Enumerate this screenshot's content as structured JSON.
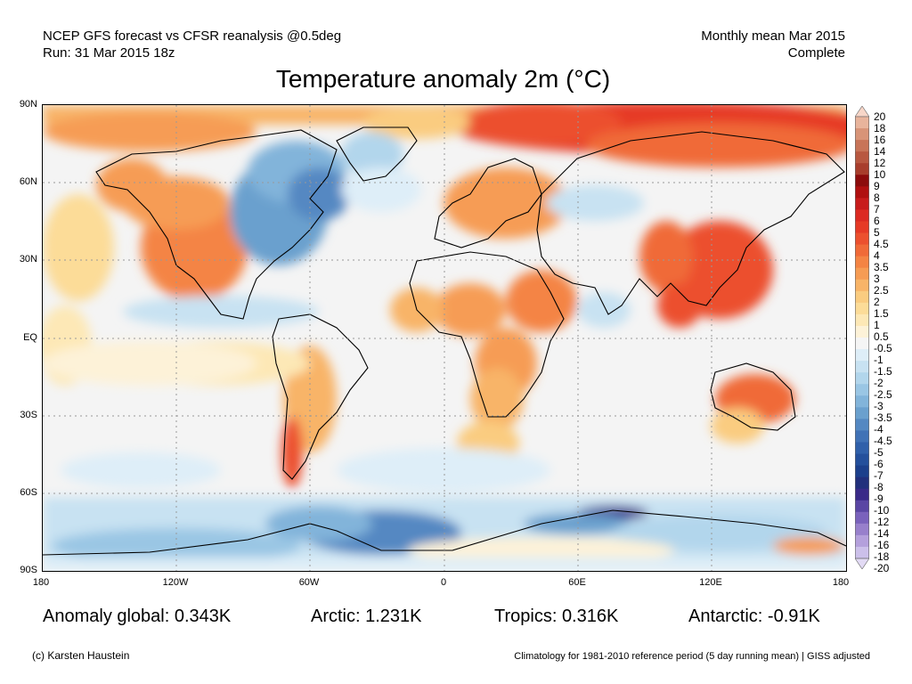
{
  "header": {
    "left_line1": "NCEP GFS forecast vs CFSR reanalysis @0.5deg",
    "left_line2": "Run: 31 Mar 2015 18z",
    "right_line1": "Monthly mean Mar 2015",
    "right_line2": "Complete"
  },
  "title": "Temperature anomaly 2m (°C)",
  "map": {
    "lat_labels": [
      "90N",
      "60N",
      "30N",
      "EQ",
      "30S",
      "60S",
      "90S"
    ],
    "lon_labels": [
      "180",
      "120W",
      "60W",
      "0",
      "60E",
      "120E",
      "180"
    ],
    "ocean_color": "#f4f4f4"
  },
  "colorbar": {
    "labels": [
      "20",
      "18",
      "16",
      "14",
      "12",
      "10",
      "9",
      "8",
      "7",
      "6",
      "5",
      "4.5",
      "4",
      "3.5",
      "3",
      "2.5",
      "2",
      "1.5",
      "1",
      "0.5",
      "-0.5",
      "-1",
      "-1.5",
      "-2",
      "-2.5",
      "-3",
      "-3.5",
      "-4",
      "-4.5",
      "-5",
      "-6",
      "-7",
      "-8",
      "-9",
      "-10",
      "-12",
      "-14",
      "-16",
      "-18",
      "-20"
    ],
    "colors": [
      "#f7d6c8",
      "#e8b49c",
      "#d89478",
      "#c87458",
      "#b85840",
      "#a83e2c",
      "#8c0c0c",
      "#b01010",
      "#c81c1c",
      "#dc2a22",
      "#e63a26",
      "#ec502e",
      "#f06a38",
      "#f48444",
      "#f69c54",
      "#f8b468",
      "#facc80",
      "#fcdc98",
      "#fde8b6",
      "#fdf2d8",
      "#f5f5f5",
      "#deeef8",
      "#c8e2f2",
      "#b2d6ec",
      "#9ac6e4",
      "#82b4da",
      "#6aa0ce",
      "#5488c2",
      "#4072b6",
      "#3060aa",
      "#24509c",
      "#1c408c",
      "#22307c",
      "#3a2a88",
      "#5a46a4",
      "#7a62bc",
      "#9880cc",
      "#b4a0dc",
      "#ccc0ea",
      "#e2daf4"
    ]
  },
  "stats": {
    "global": "Anomaly global: 0.343K",
    "arctic": "Arctic: 1.231K",
    "tropics": "Tropics: 0.316K",
    "antarctic": "Antarctic: -0.91K"
  },
  "footer": {
    "copyright": "(c) Karsten Haustein",
    "climatology": "Climatology for 1981-2010 reference period (5 day running mean) | GISS adjusted"
  }
}
